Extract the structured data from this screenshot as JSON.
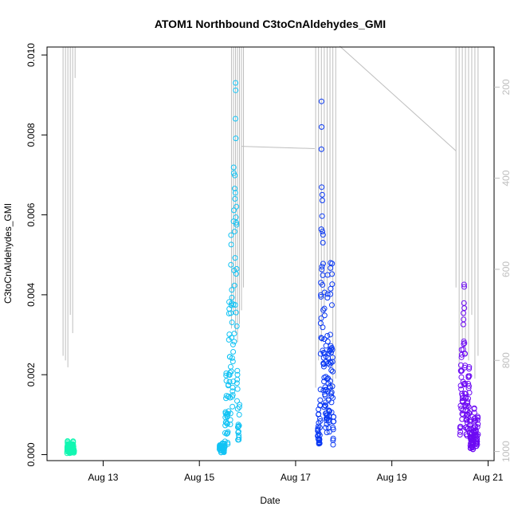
{
  "chart_data": {
    "type": "scatter",
    "title": "ATOM1 Northbound C3toCnAldehydes_GMI",
    "xlabel": "Date",
    "ylabel": "C3toCnAldehydes_GMI",
    "xlim": [
      "2016-08-11T20:00",
      "2016-08-21T03:00"
    ],
    "ylim": [
      -0.00015,
      0.0102
    ],
    "x_ticks": [
      {
        "date": "2016-08-13",
        "label": "Aug 13"
      },
      {
        "date": "2016-08-15",
        "label": "Aug 15"
      },
      {
        "date": "2016-08-17",
        "label": "Aug 17"
      },
      {
        "date": "2016-08-19",
        "label": "Aug 19"
      },
      {
        "date": "2016-08-21",
        "label": "Aug 21"
      }
    ],
    "y_ticks": [
      0.0,
      0.002,
      0.004,
      0.006,
      0.008,
      0.01
    ],
    "y_tick_labels": [
      "0.000",
      "0.002",
      "0.004",
      "0.006",
      "0.008",
      "0.010"
    ],
    "right_axis": {
      "reversed": true,
      "ticks": [
        200,
        400,
        600,
        800,
        1000
      ],
      "tick_labels": [
        "200",
        "400",
        "600",
        "800",
        "1000"
      ],
      "range": [
        112,
        1020
      ],
      "color": "#bebebe"
    },
    "grid": false,
    "legend": "none",
    "series": [
      {
        "color": "#13f7b2",
        "x_range": [
          "2016-08-12T06:00",
          "2016-08-12T09:30"
        ],
        "y_pattern": [
          0.0001,
          0.00035,
          0.0002,
          0.00015,
          0.0003,
          5e-05,
          0.0002,
          0.00025,
          0.0001,
          0.0003,
          0.0001,
          0.0002,
          0.00035,
          0.00015,
          0.0001
        ]
      },
      {
        "color": "#12c3f4",
        "x_range": [
          "2016-08-15T10:00",
          "2016-08-15T20:00"
        ],
        "y_pattern": [
          0.0002,
          0.0003,
          0.0001,
          0.00025,
          0.0003,
          0.0001,
          0.0002,
          0.0008,
          0.0022,
          0.0012,
          0.0005,
          0.0028,
          0.0045,
          0.0009,
          0.0062,
          0.0038,
          0.0015,
          0.0075,
          0.0055,
          0.0099,
          0.0085,
          0.0033,
          0.0011,
          0.0006,
          0.0013
        ]
      },
      {
        "color": "#0b39f3",
        "x_range": [
          "2016-08-17T11:00",
          "2016-08-17T19:00"
        ],
        "y_pattern": [
          0.0005,
          0.0012,
          0.0003,
          0.0008,
          0.0035,
          0.0089,
          0.0065,
          0.0055,
          0.0022,
          0.0041,
          0.0012,
          0.0028,
          0.0005,
          0.0048,
          0.0019,
          0.0009,
          0.0029,
          0.0052,
          0.0015,
          0.0055,
          0.0005,
          0.0011
        ]
      },
      {
        "color": "#6d0af3",
        "x_range": [
          "2016-08-20T10:00",
          "2016-08-20T19:00"
        ],
        "y_pattern": [
          0.0005,
          0.0031,
          0.0013,
          0.0049,
          0.0022,
          0.0009,
          0.0014,
          0.0025,
          0.0003,
          0.0006,
          0.0002,
          0.0012,
          0.0008,
          0.0003,
          0.0012
        ]
      }
    ],
    "altitude_trace": {
      "color": "#bebebe",
      "groups": [
        {
          "x_range": [
            "2016-08-12T04:00",
            "2016-08-12T10:00"
          ],
          "bottoms": [
            790,
            800,
            815,
            700,
            740,
            180
          ]
        },
        {
          "x_range": [
            "2016-08-15T16:00",
            "2016-08-15T22:00"
          ],
          "bottoms": [
            730,
            700,
            740,
            760,
            720,
            690,
            640
          ]
        },
        {
          "x_range": [
            "2016-08-17T10:00",
            "2016-08-17T20:00"
          ],
          "bottoms": [
            860,
            800,
            760,
            700,
            650,
            620,
            880,
            840
          ]
        },
        {
          "x_range": [
            "2016-08-20T08:00",
            "2016-08-20T19:00"
          ],
          "bottoms": [
            640,
            820,
            760,
            790,
            800,
            700,
            840,
            790
          ]
        }
      ],
      "connectors": [
        {
          "x": [
            "2016-08-15T21:00",
            "2016-08-17T09:30"
          ],
          "y": [
            330,
            335
          ]
        },
        {
          "x": [
            "2016-08-17T22:00",
            "2016-08-20T08:00"
          ],
          "y": [
            110,
            340
          ]
        }
      ]
    }
  }
}
